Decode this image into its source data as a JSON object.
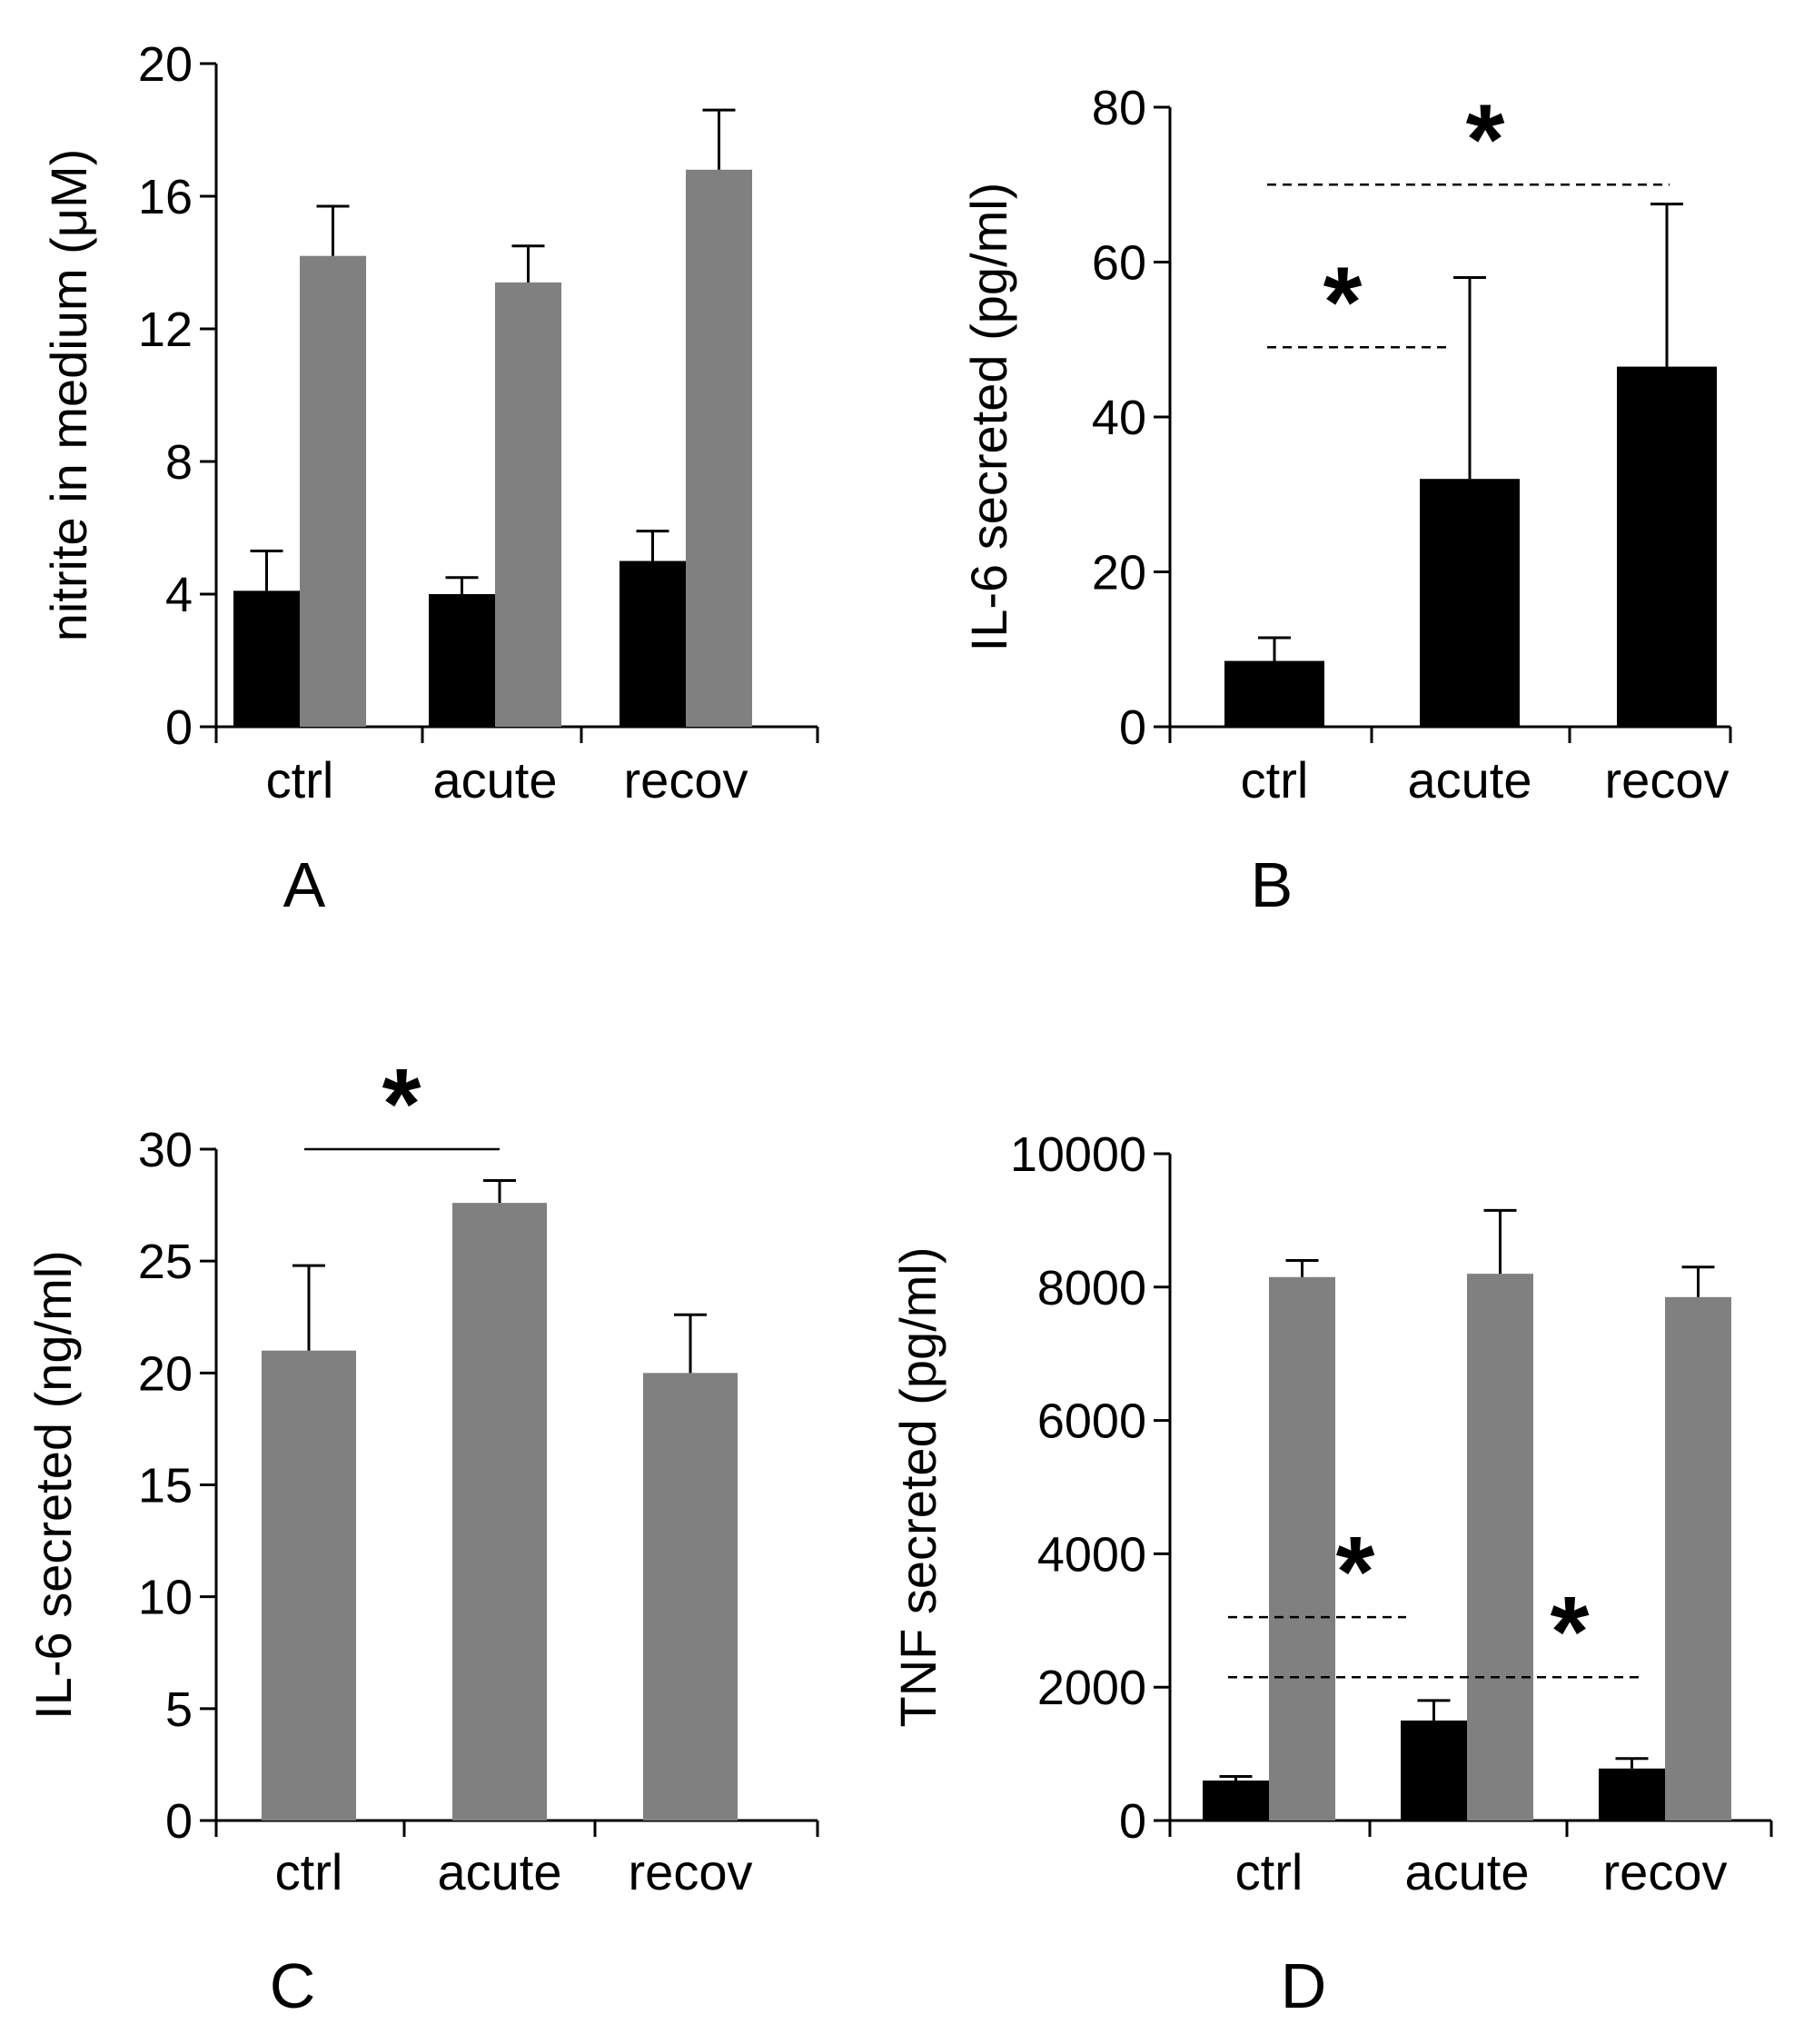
{
  "colors": {
    "black_series": "#000000",
    "gray_series": "#808080",
    "axis": "#000000",
    "background": "#ffffff"
  },
  "chart_data": [
    {
      "panel": "A",
      "type": "bar",
      "ylabel": "nitrite in medium (μM)",
      "ylim": [
        0,
        20
      ],
      "yticks": [
        "0",
        "4",
        "8",
        "12",
        "16",
        "20"
      ],
      "categories": [
        "ctrl",
        "acute",
        "recov"
      ],
      "series": [
        {
          "name": "black",
          "color": "#000000",
          "values": [
            4.1,
            4.0,
            5.0
          ],
          "errors": [
            1.2,
            0.5,
            0.9
          ]
        },
        {
          "name": "gray",
          "color": "#808080",
          "values": [
            14.2,
            13.4,
            16.8
          ],
          "errors": [
            1.5,
            1.1,
            1.8
          ]
        }
      ],
      "significance": []
    },
    {
      "panel": "B",
      "type": "bar",
      "ylabel": "IL-6 secreted (pg/ml)",
      "ylim": [
        0,
        80
      ],
      "yticks": [
        "0",
        "20",
        "40",
        "60",
        "80"
      ],
      "categories": [
        "ctrl",
        "acute",
        "recov"
      ],
      "series": [
        {
          "name": "black",
          "color": "#000000",
          "values": [
            8.5,
            32,
            46.5
          ],
          "errors": [
            3,
            26,
            21
          ]
        }
      ],
      "significance": [
        {
          "label": "*",
          "y": 49,
          "from": 0,
          "to": 1,
          "style": "dashed"
        },
        {
          "label": "*",
          "y": 70,
          "from": 0,
          "to": 2,
          "style": "dashed"
        }
      ]
    },
    {
      "panel": "C",
      "type": "bar",
      "ylabel": "IL-6 secreted (ng/ml)",
      "ylim": [
        0,
        30
      ],
      "yticks": [
        "0",
        "5",
        "10",
        "15",
        "20",
        "25",
        "30"
      ],
      "categories": [
        "ctrl",
        "acute",
        "recov"
      ],
      "series": [
        {
          "name": "gray",
          "color": "#808080",
          "values": [
            21,
            27.6,
            20
          ],
          "errors": [
            3.8,
            1.0,
            2.6
          ]
        }
      ],
      "significance": [
        {
          "label": "*",
          "y": 30,
          "from": 0,
          "to": 1,
          "style": "solid"
        }
      ]
    },
    {
      "panel": "D",
      "type": "bar",
      "ylabel": "TNF secreted (pg/ml)",
      "ylim": [
        0,
        10000
      ],
      "yticks": [
        "0",
        "2000",
        "4000",
        "6000",
        "8000",
        "10000"
      ],
      "categories": [
        "ctrl",
        "acute",
        "recov"
      ],
      "series": [
        {
          "name": "black",
          "color": "#000000",
          "values": [
            600,
            1500,
            780
          ],
          "errors": [
            60,
            300,
            150
          ]
        },
        {
          "name": "gray",
          "color": "#808080",
          "values": [
            8150,
            8200,
            7850
          ],
          "errors": [
            250,
            950,
            450
          ]
        }
      ],
      "significance": [
        {
          "label": "*",
          "y": 3050,
          "from": 0,
          "to": 1,
          "style": "dashed"
        },
        {
          "label": "*",
          "y": 2150,
          "from": 0,
          "to": 2,
          "style": "dashed"
        }
      ]
    }
  ]
}
